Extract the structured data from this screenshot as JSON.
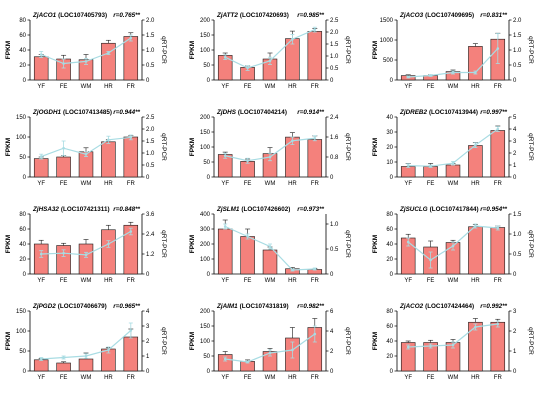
{
  "colors": {
    "bar": "#F4817C",
    "bar_stroke": "#1a1a1a",
    "line": "#A8DCE3",
    "axis": "#000000"
  },
  "chart_data": [
    {
      "type": "bar",
      "gene": "ZjACO1",
      "locus": "(LOC107405793)",
      "r": "r=0.765**",
      "categories": [
        "YF",
        "FE",
        "WM",
        "HR",
        "FR"
      ],
      "ylabel": "FPKM",
      "y2label": "qRT-PCR",
      "ylim": [
        0,
        80
      ],
      "yticks": [
        "0",
        "20",
        "40",
        "60",
        "80"
      ],
      "y2lim": [
        0,
        2.0
      ],
      "y2ticks": [
        "0",
        "0.5",
        "1.0",
        "1.5",
        "2.0"
      ],
      "series": [
        {
          "values": [
            31,
            28,
            27,
            49,
            58
          ],
          "errors": [
            3,
            5,
            7,
            4,
            5
          ]
        },
        {
          "values": [
            0.85,
            0.55,
            0.62,
            0.9,
            1.4
          ],
          "errors": [
            0.1,
            0.15,
            0.1,
            0.05,
            0.1
          ]
        }
      ]
    },
    {
      "type": "bar",
      "gene": "ZjATT2",
      "locus": "(LOC107420693)",
      "r": "r=0.985**",
      "categories": [
        "YF",
        "FE",
        "WM",
        "HR",
        "FR"
      ],
      "ylabel": "FPKM",
      "y2label": "qRT-PCR",
      "ylim": [
        0,
        200
      ],
      "yticks": [
        "0",
        "50",
        "100",
        "150",
        "200"
      ],
      "y2lim": [
        0,
        2.5
      ],
      "y2ticks": [
        "0",
        "0.5",
        "1.0",
        "1.5",
        "2.0",
        "2.5"
      ],
      "series": [
        {
          "values": [
            82,
            42,
            70,
            138,
            162
          ],
          "errors": [
            8,
            5,
            20,
            25,
            10
          ]
        },
        {
          "values": [
            0.95,
            0.5,
            0.8,
            1.7,
            2.1
          ],
          "errors": [
            0.1,
            0.1,
            0.15,
            0.2,
            0.1
          ]
        }
      ]
    },
    {
      "type": "bar",
      "gene": "ZjACO3",
      "locus": "(LOC107409695)",
      "r": "r=0.831**",
      "categories": [
        "YF",
        "FE",
        "WM",
        "HR",
        "FR"
      ],
      "ylabel": "FPKM",
      "y2label": "qRT-PCR",
      "ylim": [
        0,
        1500
      ],
      "yticks": [
        "0",
        "500",
        "1000",
        "1500"
      ],
      "y2lim": [
        0,
        2.0
      ],
      "y2ticks": [
        "0",
        "0.5",
        "1.0",
        "1.5",
        "2.0"
      ],
      "series": [
        {
          "values": [
            110,
            110,
            210,
            840,
            1020
          ],
          "errors": [
            20,
            20,
            40,
            70,
            150
          ]
        },
        {
          "values": [
            0.1,
            0.15,
            0.25,
            0.25,
            1.05
          ],
          "errors": [
            0.03,
            0.03,
            0.05,
            0.05,
            0.5
          ]
        }
      ]
    },
    {
      "type": "bar",
      "gene": "ZjOGDH1",
      "locus": "(LOC107413485)",
      "r": "r=0.944**",
      "categories": [
        "YF",
        "FE",
        "WM",
        "HR",
        "FR"
      ],
      "ylabel": "FPKM",
      "y2label": "qRT-PCR",
      "ylim": [
        0,
        150
      ],
      "yticks": [
        "0",
        "50",
        "100",
        "150"
      ],
      "y2lim": [
        0,
        2.5
      ],
      "y2ticks": [
        "0",
        "0.5",
        "1.0",
        "1.5",
        "2.0",
        "2.5"
      ],
      "series": [
        {
          "values": [
            46,
            50,
            63,
            88,
            100
          ],
          "errors": [
            4,
            4,
            10,
            5,
            4
          ]
        },
        {
          "values": [
            0.85,
            1.2,
            0.95,
            1.55,
            1.65
          ],
          "errors": [
            0.1,
            0.3,
            0.1,
            0.15,
            0.1
          ]
        }
      ]
    },
    {
      "type": "bar",
      "gene": "ZjDHS",
      "locus": "(LOC107404214)",
      "r": "r=0.914**",
      "categories": [
        "YF",
        "FE",
        "WM",
        "HR",
        "FR"
      ],
      "ylabel": "FPKM",
      "y2label": "qRT-PCR",
      "ylim": [
        0,
        200
      ],
      "yticks": [
        "0",
        "50",
        "100",
        "150",
        "200"
      ],
      "y2lim": [
        0,
        2.4
      ],
      "y2ticks": [
        "0",
        "0.8",
        "1.6",
        "2.4"
      ],
      "series": [
        {
          "values": [
            75,
            52,
            78,
            133,
            125
          ],
          "errors": [
            8,
            8,
            20,
            15,
            12
          ]
        },
        {
          "values": [
            0.85,
            0.65,
            0.8,
            1.45,
            1.55
          ],
          "errors": [
            0.1,
            0.1,
            0.15,
            0.15,
            0.1
          ]
        }
      ]
    },
    {
      "type": "bar",
      "gene": "ZjDREB2",
      "locus": "(LOC107413944)",
      "r": "r=0.997**",
      "categories": [
        "YF",
        "FE",
        "WM",
        "HR",
        "FR"
      ],
      "ylabel": "FPKM",
      "y2label": "qRT-PCR",
      "ylim": [
        0,
        40
      ],
      "yticks": [
        "0",
        "10",
        "20",
        "30",
        "40"
      ],
      "y2lim": [
        0,
        5
      ],
      "y2ticks": [
        "0",
        "1",
        "2",
        "3",
        "4",
        "5"
      ],
      "series": [
        {
          "values": [
            7,
            7,
            8,
            21,
            31
          ],
          "errors": [
            2,
            2,
            1,
            2,
            3
          ]
        },
        {
          "values": [
            0.95,
            0.9,
            1.15,
            2.65,
            4.0
          ],
          "errors": [
            0.15,
            0.1,
            0.15,
            0.2,
            0.2
          ]
        }
      ]
    },
    {
      "type": "bar",
      "gene": "ZjHSA32",
      "locus": "(LOC107421311)",
      "r": "r=0.848**",
      "categories": [
        "YF",
        "FE",
        "WM",
        "HR",
        "FR"
      ],
      "ylabel": "FPKM",
      "y2label": "qRT-PCR",
      "ylim": [
        0,
        80
      ],
      "yticks": [
        "0",
        "20",
        "40",
        "60",
        "80"
      ],
      "y2lim": [
        0,
        3.6
      ],
      "y2ticks": [
        "0",
        "1.2",
        "2.4",
        "3.6"
      ],
      "series": [
        {
          "values": [
            40,
            38,
            40,
            59,
            65
          ],
          "errors": [
            5,
            3,
            6,
            6,
            4
          ]
        },
        {
          "values": [
            1.2,
            1.25,
            1.15,
            1.8,
            2.55
          ],
          "errors": [
            0.2,
            0.2,
            0.15,
            0.2,
            0.2
          ]
        }
      ]
    },
    {
      "type": "bar",
      "gene": "ZjSLM1",
      "locus": "(LOC107426602)",
      "r": "r=0.973**",
      "categories": [
        "YF",
        "FE",
        "WM",
        "HR",
        "FR"
      ],
      "ylabel": "FPKM",
      "y2label": "qRT-PCR",
      "ylim": [
        0,
        400
      ],
      "yticks": [
        "0",
        "100",
        "200",
        "300",
        "400"
      ],
      "y2lim": [
        0,
        1.2
      ],
      "y2ticks": [
        "0",
        "0.5",
        "1.0"
      ],
      "series": [
        {
          "values": [
            300,
            250,
            160,
            35,
            30
          ],
          "errors": [
            60,
            50,
            20,
            8,
            5
          ]
        },
        {
          "values": [
            0.95,
            0.75,
            0.55,
            0.08,
            0.1
          ],
          "errors": [
            0.05,
            0.05,
            0.05,
            0.02,
            0.02
          ]
        }
      ]
    },
    {
      "type": "bar",
      "gene": "ZjSUCLG",
      "locus": "(LOC107417844)",
      "r": "r=0.954**",
      "categories": [
        "YF",
        "FE",
        "WM",
        "HR",
        "FR"
      ],
      "ylabel": "FPKM",
      "y2label": "qRT-PCR",
      "ylim": [
        0,
        80
      ],
      "yticks": [
        "0",
        "20",
        "40",
        "60",
        "80"
      ],
      "y2lim": [
        0,
        1.5
      ],
      "y2ticks": [
        "0",
        "0.5",
        "1.0",
        "1.5"
      ],
      "series": [
        {
          "values": [
            48,
            36,
            42,
            63,
            62
          ],
          "errors": [
            5,
            8,
            3,
            3,
            2
          ]
        },
        {
          "values": [
            0.8,
            0.35,
            0.7,
            1.2,
            1.15
          ],
          "errors": [
            0.1,
            0.2,
            0.1,
            0.05,
            0.05
          ]
        }
      ]
    },
    {
      "type": "bar",
      "gene": "ZjPGD2",
      "locus": "(LOC107406679)",
      "r": "r=0.965**",
      "categories": [
        "YF",
        "FE",
        "WM",
        "HR",
        "FR"
      ],
      "ylabel": "FPKM",
      "y2label": "qRT-PCR",
      "ylim": [
        0,
        150
      ],
      "yticks": [
        "0",
        "50",
        "100",
        "150"
      ],
      "y2lim": [
        0,
        4
      ],
      "y2ticks": [
        "0",
        "1",
        "2",
        "3",
        "4"
      ],
      "series": [
        {
          "values": [
            28,
            20,
            30,
            55,
            85
          ],
          "errors": [
            3,
            3,
            15,
            3,
            20
          ]
        },
        {
          "values": [
            0.8,
            0.9,
            1.0,
            1.4,
            2.7
          ],
          "errors": [
            0.1,
            0.1,
            0.15,
            0.2,
            0.5
          ]
        }
      ]
    },
    {
      "type": "bar",
      "gene": "ZjAIM1",
      "locus": "(LOC107431819)",
      "r": "r=0.982**",
      "categories": [
        "YF",
        "FE",
        "WM",
        "HR",
        "FR"
      ],
      "ylabel": "FPKM",
      "y2label": "qRT-PCR",
      "ylim": [
        0,
        200
      ],
      "yticks": [
        "0",
        "50",
        "100",
        "150",
        "200"
      ],
      "y2lim": [
        0,
        6
      ],
      "y2ticks": [
        "0",
        "2",
        "4",
        "6"
      ],
      "series": [
        {
          "values": [
            55,
            32,
            65,
            110,
            145
          ],
          "errors": [
            10,
            5,
            10,
            35,
            30
          ]
        },
        {
          "values": [
            1.2,
            0.9,
            1.8,
            2.1,
            3.7
          ],
          "errors": [
            0.2,
            0.1,
            0.3,
            0.8,
            0.8
          ]
        }
      ]
    },
    {
      "type": "bar",
      "gene": "ZjACO2",
      "locus": "(LOC107424464)",
      "r": "r=0.992**",
      "categories": [
        "YF",
        "FE",
        "WM",
        "HR",
        "FR"
      ],
      "ylabel": "FPKM",
      "y2label": "qRT-PCR",
      "ylim": [
        0,
        80
      ],
      "yticks": [
        "0",
        "20",
        "40",
        "60",
        "80"
      ],
      "y2lim": [
        0,
        3
      ],
      "y2ticks": [
        "0",
        "1",
        "2",
        "3"
      ],
      "series": [
        {
          "values": [
            38,
            38,
            38,
            65,
            65
          ],
          "errors": [
            2,
            3,
            4,
            5,
            4
          ]
        },
        {
          "values": [
            1.2,
            1.25,
            1.3,
            2.2,
            2.35
          ],
          "errors": [
            0.1,
            0.1,
            0.15,
            0.15,
            0.15
          ]
        }
      ]
    }
  ]
}
